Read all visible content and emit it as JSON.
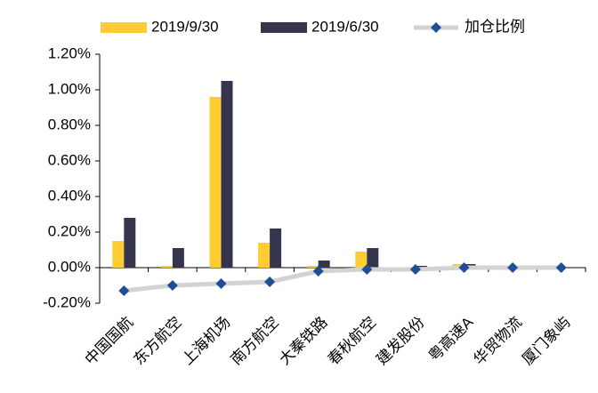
{
  "chart_data": {
    "type": "bar",
    "categories": [
      "中国国航",
      "东方航空",
      "上海机场",
      "南方航空",
      "大秦铁路",
      "春秋航空",
      "建发股份",
      "粤高速A",
      "华贸物流",
      "厦门象屿"
    ],
    "series": [
      {
        "name": "2019/9/30",
        "color": "#ffcc33",
        "values": [
          0.15,
          0.01,
          0.96,
          0.14,
          0.01,
          0.09,
          0.0,
          0.02,
          0.0,
          0.0
        ]
      },
      {
        "name": "2019/6/30",
        "color": "#35354d",
        "values": [
          0.28,
          0.11,
          1.05,
          0.22,
          0.04,
          0.11,
          0.01,
          0.02,
          0.0,
          0.0
        ]
      },
      {
        "name": "加仓比例",
        "type": "line",
        "color": "#d3d3d3",
        "marker_color": "#1f4e96",
        "values": [
          -0.13,
          -0.1,
          -0.09,
          -0.08,
          -0.02,
          -0.01,
          -0.01,
          0.0,
          0.0,
          0.0
        ]
      }
    ],
    "ylim": [
      -0.2,
      1.2
    ],
    "yticks": [
      {
        "value": -0.2,
        "label": "-0.20%"
      },
      {
        "value": 0,
        "label": "0.00%"
      },
      {
        "value": 0.2,
        "label": "0.20%"
      },
      {
        "value": 0.4,
        "label": "0.40%"
      },
      {
        "value": 0.6,
        "label": "0.60%"
      },
      {
        "value": 0.8,
        "label": "0.80%"
      },
      {
        "value": 1.0,
        "label": "1.00%"
      },
      {
        "value": 1.2,
        "label": "1.20%"
      }
    ],
    "legend": "top"
  }
}
